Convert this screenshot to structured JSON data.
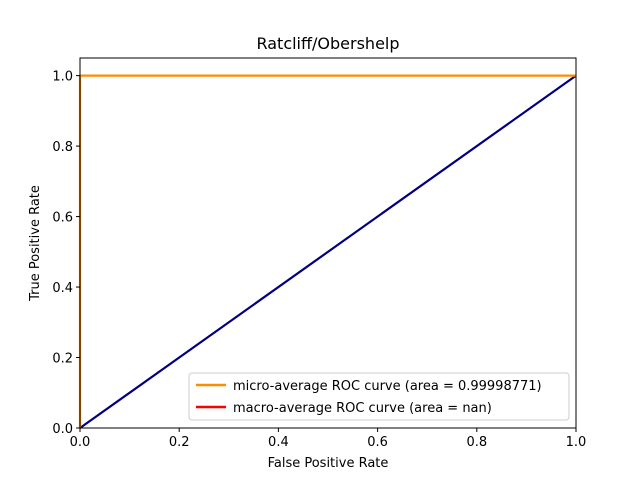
{
  "chart_data": {
    "type": "line",
    "title": "Ratcliff/Obershelp",
    "xlabel": "False Positive Rate",
    "ylabel": "True Positive Rate",
    "xlim": [
      0.0,
      1.0
    ],
    "ylim": [
      0.0,
      1.05
    ],
    "xticks": [
      "0.0",
      "0.2",
      "0.4",
      "0.6",
      "0.8",
      "1.0"
    ],
    "yticks": [
      "0.0",
      "0.2",
      "0.4",
      "0.6",
      "0.8",
      "1.0"
    ],
    "grid": false,
    "legend_position": "lower right",
    "series": [
      {
        "name": "micro-average ROC curve (area = 0.99998771)",
        "color": "#ff8c00",
        "x": [
          0.0,
          0.0,
          1.0
        ],
        "y": [
          0.0,
          1.0,
          1.0
        ]
      },
      {
        "name": "macro-average ROC curve (area = nan)",
        "color": "#ff0000",
        "x": [],
        "y": []
      },
      {
        "color": "#000080",
        "x": [
          0.0,
          1.0
        ],
        "y": [
          0.0,
          1.0
        ]
      }
    ]
  }
}
